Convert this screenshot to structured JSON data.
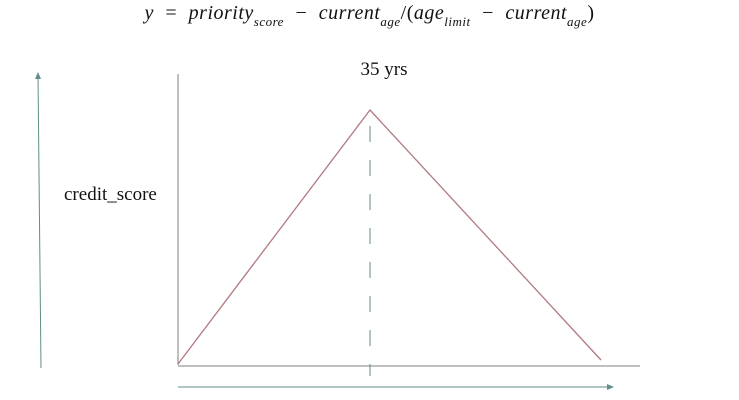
{
  "formula": {
    "y": "y",
    "eq": "=",
    "priority": "priority",
    "score_sub": "score",
    "minus1": "−",
    "current1": "current",
    "age_sub1": "age",
    "slash_paren": "/(",
    "age": "age",
    "limit_sub": "limit",
    "minus2": "−",
    "current2": "current",
    "age_sub2": "age",
    "close_paren": ")"
  },
  "peak_label": "35 yrs",
  "y_axis_label": "credit_score",
  "colors": {
    "axis": "#7f7f7f",
    "arrow": "#5f8f88",
    "triangle": "#b07a80",
    "dashed": "#5f8f88",
    "text": "#111111"
  }
}
